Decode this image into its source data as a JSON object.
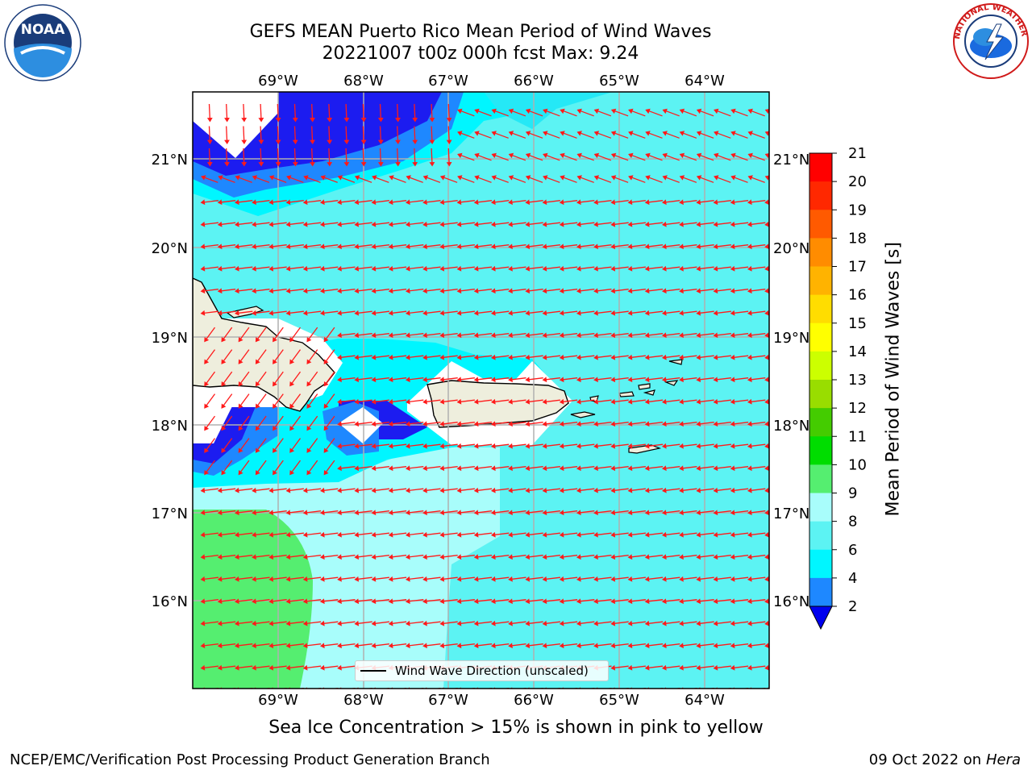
{
  "header": {
    "title_line1": "GEFS MEAN Puerto Rico Mean Period of Wind Waves",
    "title_line2": "20221007 t00z 000h fcst   Max: 9.24"
  },
  "logos": {
    "left_text": "NOAA",
    "right_text": "NATIONAL WEATHER SERVICE"
  },
  "map": {
    "lon_labels": [
      "69°W",
      "68°W",
      "67°W",
      "66°W",
      "65°W",
      "64°W"
    ],
    "lat_labels": [
      "21°N",
      "20°N",
      "19°N",
      "18°N",
      "17°N",
      "16°N"
    ],
    "colors": {
      "ocean_cyan": "#5cf3f3",
      "pale_cyan": "#a8fdfb",
      "green": "#55ee70",
      "blue": "#1c1cf0",
      "mid_blue": "#1e88ff",
      "bright_cyan": "#00ffff",
      "land": "#eeeedd",
      "arrow": "#ff1a1a",
      "grid": "#b0b0b0"
    },
    "legend_label": "Wind Wave Direction (unscaled)"
  },
  "colorbar": {
    "label": "Mean Period of Wind Waves [s]",
    "ticks": [
      "2",
      "4",
      "6",
      "8",
      "9",
      "10",
      "11",
      "12",
      "13",
      "14",
      "15",
      "16",
      "17",
      "18",
      "19",
      "20",
      "21"
    ],
    "colors": [
      "#1c1cf0",
      "#1e88ff",
      "#00f6ff",
      "#5cf3f3",
      "#a8fdfb",
      "#55ee70",
      "#00dd00",
      "#44cc00",
      "#99dd00",
      "#ccff00",
      "#ffff00",
      "#ffdd00",
      "#ffb300",
      "#ff8c00",
      "#ff5a00",
      "#ff2800",
      "#ff0000"
    ],
    "under_color": "#0000ee"
  },
  "footer": {
    "sea_ice_note": "Sea Ice Concentration > 15% is shown in pink to yellow",
    "left": "NCEP/EMC/Verification Post Processing Product Generation Branch",
    "right_prefix": "09 Oct 2022 on ",
    "right_host": "Hera"
  }
}
